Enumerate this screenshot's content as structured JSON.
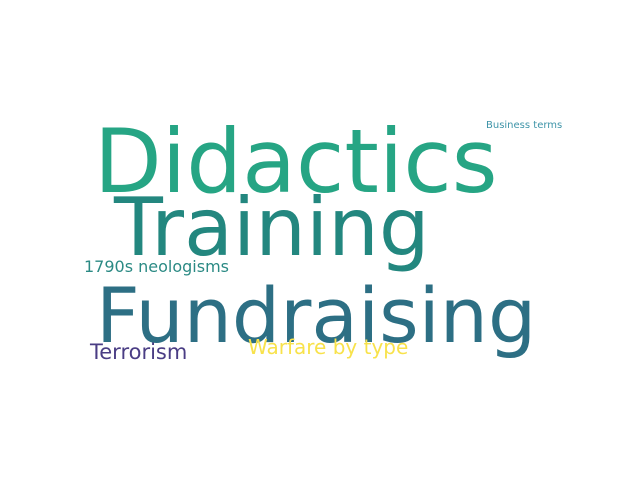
{
  "word_cloud": {
    "words": [
      {
        "text": "Didactics",
        "color": "#26a584"
      },
      {
        "text": "Training",
        "color": "#23877f"
      },
      {
        "text": "Fundraising",
        "color": "#2d6f84"
      },
      {
        "text": "1790s neologisms",
        "color": "#2b8a84"
      },
      {
        "text": "Terrorism",
        "color": "#4a3d84"
      },
      {
        "text": "Warfare by type",
        "color": "#f8e24b"
      },
      {
        "text": "Business terms",
        "color": "#3e94a8"
      }
    ]
  }
}
